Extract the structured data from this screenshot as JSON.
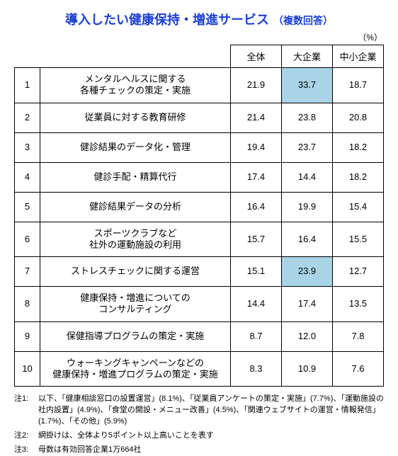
{
  "title": {
    "main": "導入したい健康保持・増進サービス",
    "sub": "（複数回答）",
    "color": "#1a3fd6",
    "main_fontsize": 18,
    "sub_fontsize": 14
  },
  "unit_label": "（%）",
  "columns": [
    {
      "key": "overall",
      "label": "全体"
    },
    {
      "key": "large",
      "label": "大企業"
    },
    {
      "key": "sme",
      "label": "中小企業"
    }
  ],
  "rows": [
    {
      "rank": "1",
      "label": "メンタルヘルスに関する\n各種チェックの策定・実施",
      "overall": "21.9",
      "large": "33.7",
      "sme": "18.7",
      "highlight": [
        "large"
      ]
    },
    {
      "rank": "2",
      "label": "従業員に対する教育研修",
      "overall": "21.4",
      "large": "23.8",
      "sme": "20.8",
      "highlight": []
    },
    {
      "rank": "3",
      "label": "健診結果のデータ化・管理",
      "overall": "19.4",
      "large": "23.7",
      "sme": "18.2",
      "highlight": []
    },
    {
      "rank": "4",
      "label": "健診手配・精算代行",
      "overall": "17.4",
      "large": "14.4",
      "sme": "18.2",
      "highlight": []
    },
    {
      "rank": "5",
      "label": "健診結果データの分析",
      "overall": "16.4",
      "large": "19.9",
      "sme": "15.4",
      "highlight": []
    },
    {
      "rank": "6",
      "label": "スポーツクラブなど\n社外の運動施設の利用",
      "overall": "15.7",
      "large": "16.4",
      "sme": "15.5",
      "highlight": []
    },
    {
      "rank": "7",
      "label": "ストレスチェックに関する運営",
      "overall": "15.1",
      "large": "23.9",
      "sme": "12.7",
      "highlight": [
        "large"
      ]
    },
    {
      "rank": "8",
      "label": "健康保持・増進についての\nコンサルティング",
      "overall": "14.4",
      "large": "17.4",
      "sme": "13.5",
      "highlight": []
    },
    {
      "rank": "9",
      "label": "保健指導プログラムの策定・実施",
      "overall": "8.7",
      "large": "12.0",
      "sme": "7.8",
      "highlight": []
    },
    {
      "rank": "10",
      "label": "ウォーキングキャンペーンなどの\n健康保持・増進プログラムの策定・実施",
      "overall": "8.3",
      "large": "10.9",
      "sme": "7.6",
      "highlight": []
    }
  ],
  "highlight_color": "#a9d3e6",
  "notes": [
    {
      "label": "注1:",
      "text": "以下、「健康相談窓口の設置運営」(8.1%)、「従業員アンケートの策定・実施」(7.7%)、「運動施設の社内設置」(4.9%)、「食堂の開設・メニュー改善」(4.5%)、「関連ウェブサイトの運営・情報発信」(1.7%)、「その他」(5.9%)"
    },
    {
      "label": "注2:",
      "text": "網掛けは、全体より5ポイント以上高いことを表す"
    },
    {
      "label": "注3:",
      "text": "母数は有効回答企業1万664社"
    }
  ]
}
